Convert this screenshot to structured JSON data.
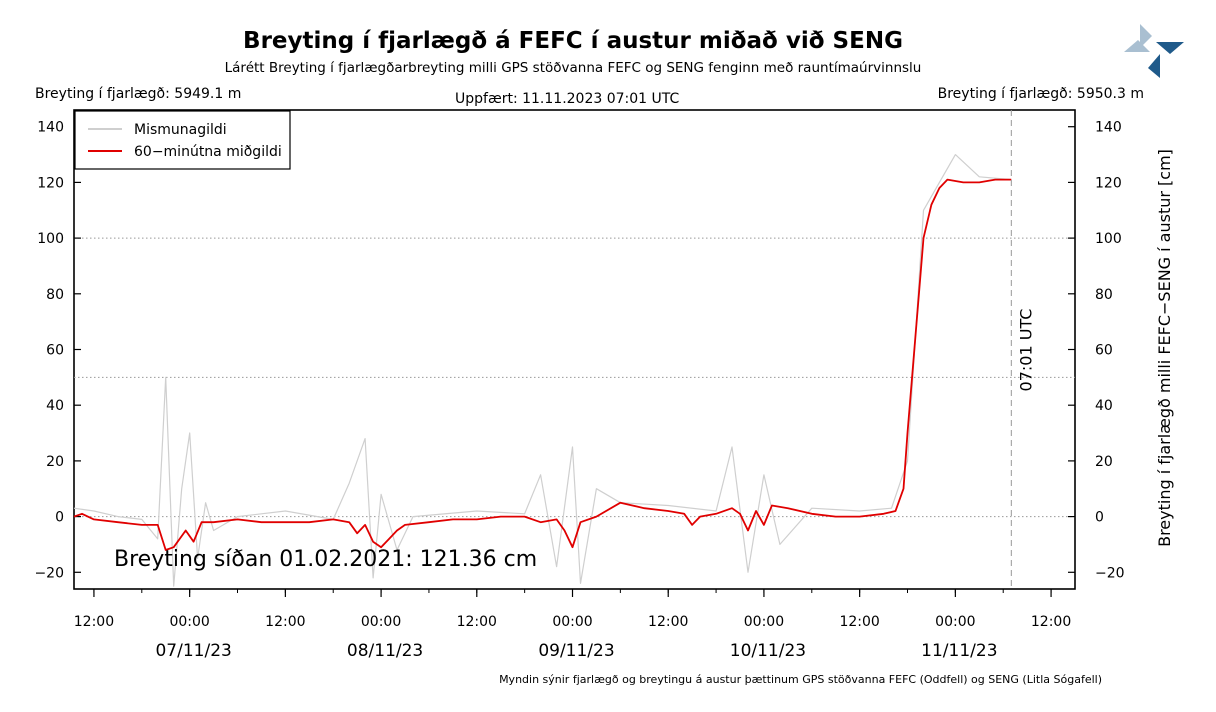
{
  "header": {
    "title": "Breyting í fjarlægð á FEFC í austur miðað við SENG",
    "subtitle": "Lárétt Breyting í fjarlægðarbreyting milli GPS stöðvanna FEFC og SENG fenginn með rauntímaúrvinnslu",
    "distance_left": "Breyting í fjarlægð: 5949.1 m",
    "updated": "Uppfært: 11.11.2023 07:01 UTC",
    "distance_right": "Breyting í fjarlægð: 5950.3 m"
  },
  "footer": {
    "note": "Myndin sýnir fjarlægð og breytingu á austur þættinum GPS stöðvanna FEFC (Oddfell) og SENG (Litla Sógafell)"
  },
  "colors": {
    "raw": "#cfcfcf",
    "median": "#e00000",
    "logo_light": "#a9bfd1",
    "logo_dark": "#1f5a8a"
  },
  "chart_data": {
    "type": "line",
    "ylabel": "Breyting í fjarlægð milli FEFC−SENG í austur [cm]",
    "ylim": [
      -26,
      146
    ],
    "yticks": [
      -20,
      0,
      20,
      40,
      60,
      80,
      100,
      120,
      140
    ],
    "ytick_labels": [
      "−20",
      "0",
      "20",
      "40",
      "60",
      "80",
      "100",
      "120",
      "140"
    ],
    "hlines": [
      0,
      50,
      100
    ],
    "xlim": [
      "2023-11-06 09:30",
      "2023-11-11 15:00"
    ],
    "xticks": [
      {
        "t": "2023-11-06 12:00",
        "label": "12:00",
        "date": ""
      },
      {
        "t": "2023-11-07 00:00",
        "label": "00:00",
        "date": "07/11/23"
      },
      {
        "t": "2023-11-07 12:00",
        "label": "12:00",
        "date": ""
      },
      {
        "t": "2023-11-08 00:00",
        "label": "00:00",
        "date": "08/11/23"
      },
      {
        "t": "2023-11-08 12:00",
        "label": "12:00",
        "date": ""
      },
      {
        "t": "2023-11-09 00:00",
        "label": "00:00",
        "date": "09/11/23"
      },
      {
        "t": "2023-11-09 12:00",
        "label": "12:00",
        "date": ""
      },
      {
        "t": "2023-11-10 00:00",
        "label": "00:00",
        "date": "10/11/23"
      },
      {
        "t": "2023-11-10 12:00",
        "label": "12:00",
        "date": ""
      },
      {
        "t": "2023-11-11 00:00",
        "label": "00:00",
        "date": "11/11/23"
      },
      {
        "t": "2023-11-11 12:00",
        "label": "12:00",
        "date": ""
      }
    ],
    "marker": {
      "t": "2023-11-11 07:01",
      "label": "07:01 UTC"
    },
    "annotation": "Breyting síðan 01.02.2021: 121.36 cm",
    "legend": {
      "position": "top-left"
    },
    "series": [
      {
        "name": "Mismunagildi",
        "color": "#cfcfcf",
        "points": [
          [
            "2023-11-06 09:30",
            3
          ],
          [
            "2023-11-06 12:00",
            2
          ],
          [
            "2023-11-06 15:00",
            0
          ],
          [
            "2023-11-06 18:00",
            -1
          ],
          [
            "2023-11-06 20:00",
            -8
          ],
          [
            "2023-11-06 21:00",
            50
          ],
          [
            "2023-11-06 22:00",
            -25
          ],
          [
            "2023-11-06 23:00",
            10
          ],
          [
            "2023-11-07 00:00",
            30
          ],
          [
            "2023-11-07 01:00",
            -15
          ],
          [
            "2023-11-07 02:00",
            5
          ],
          [
            "2023-11-07 03:00",
            -5
          ],
          [
            "2023-11-07 06:00",
            0
          ],
          [
            "2023-11-07 12:00",
            2
          ],
          [
            "2023-11-07 18:00",
            -1
          ],
          [
            "2023-11-07 20:00",
            12
          ],
          [
            "2023-11-07 22:00",
            28
          ],
          [
            "2023-11-07 23:00",
            -22
          ],
          [
            "2023-11-08 00:00",
            8
          ],
          [
            "2023-11-08 02:00",
            -12
          ],
          [
            "2023-11-08 04:00",
            0
          ],
          [
            "2023-11-08 12:00",
            2
          ],
          [
            "2023-11-08 18:00",
            1
          ],
          [
            "2023-11-08 20:00",
            15
          ],
          [
            "2023-11-08 22:00",
            -18
          ],
          [
            "2023-11-09 00:00",
            25
          ],
          [
            "2023-11-09 01:00",
            -24
          ],
          [
            "2023-11-09 03:00",
            10
          ],
          [
            "2023-11-09 06:00",
            5
          ],
          [
            "2023-11-09 12:00",
            4
          ],
          [
            "2023-11-09 18:00",
            2
          ],
          [
            "2023-11-09 20:00",
            25
          ],
          [
            "2023-11-09 22:00",
            -20
          ],
          [
            "2023-11-10 00:00",
            15
          ],
          [
            "2023-11-10 02:00",
            -10
          ],
          [
            "2023-11-10 06:00",
            3
          ],
          [
            "2023-11-10 12:00",
            2
          ],
          [
            "2023-11-10 16:00",
            3
          ],
          [
            "2023-11-10 18:00",
            20
          ],
          [
            "2023-11-10 20:00",
            110
          ],
          [
            "2023-11-10 22:00",
            120
          ],
          [
            "2023-11-11 00:00",
            130
          ],
          [
            "2023-11-11 03:00",
            122
          ],
          [
            "2023-11-11 07:01",
            121
          ]
        ]
      },
      {
        "name": "60−minútna miðgildi",
        "color": "#e00000",
        "points": [
          [
            "2023-11-06 09:30",
            0
          ],
          [
            "2023-11-06 10:30",
            1
          ],
          [
            "2023-11-06 12:00",
            -1
          ],
          [
            "2023-11-06 15:00",
            -2
          ],
          [
            "2023-11-06 18:00",
            -3
          ],
          [
            "2023-11-06 20:00",
            -3
          ],
          [
            "2023-11-06 21:00",
            -12
          ],
          [
            "2023-11-06 22:00",
            -11
          ],
          [
            "2023-11-06 23:30",
            -5
          ],
          [
            "2023-11-07 00:30",
            -9
          ],
          [
            "2023-11-07 01:30",
            -2
          ],
          [
            "2023-11-07 03:00",
            -2
          ],
          [
            "2023-11-07 06:00",
            -1
          ],
          [
            "2023-11-07 09:00",
            -2
          ],
          [
            "2023-11-07 12:00",
            -2
          ],
          [
            "2023-11-07 15:00",
            -2
          ],
          [
            "2023-11-07 18:00",
            -1
          ],
          [
            "2023-11-07 20:00",
            -2
          ],
          [
            "2023-11-07 21:00",
            -6
          ],
          [
            "2023-11-07 22:00",
            -3
          ],
          [
            "2023-11-07 23:00",
            -9
          ],
          [
            "2023-11-08 00:00",
            -11
          ],
          [
            "2023-11-08 01:00",
            -8
          ],
          [
            "2023-11-08 02:00",
            -5
          ],
          [
            "2023-11-08 03:00",
            -3
          ],
          [
            "2023-11-08 06:00",
            -2
          ],
          [
            "2023-11-08 09:00",
            -1
          ],
          [
            "2023-11-08 12:00",
            -1
          ],
          [
            "2023-11-08 15:00",
            0
          ],
          [
            "2023-11-08 18:00",
            0
          ],
          [
            "2023-11-08 20:00",
            -2
          ],
          [
            "2023-11-08 22:00",
            -1
          ],
          [
            "2023-11-08 23:00",
            -5
          ],
          [
            "2023-11-09 00:00",
            -11
          ],
          [
            "2023-11-09 01:00",
            -2
          ],
          [
            "2023-11-09 03:00",
            0
          ],
          [
            "2023-11-09 06:00",
            5
          ],
          [
            "2023-11-09 09:00",
            3
          ],
          [
            "2023-11-09 12:00",
            2
          ],
          [
            "2023-11-09 14:00",
            1
          ],
          [
            "2023-11-09 15:00",
            -3
          ],
          [
            "2023-11-09 16:00",
            0
          ],
          [
            "2023-11-09 18:00",
            1
          ],
          [
            "2023-11-09 20:00",
            3
          ],
          [
            "2023-11-09 21:00",
            1
          ],
          [
            "2023-11-09 22:00",
            -5
          ],
          [
            "2023-11-09 23:00",
            2
          ],
          [
            "2023-11-10 00:00",
            -3
          ],
          [
            "2023-11-10 01:00",
            4
          ],
          [
            "2023-11-10 03:00",
            3
          ],
          [
            "2023-11-10 06:00",
            1
          ],
          [
            "2023-11-10 09:00",
            0
          ],
          [
            "2023-11-10 12:00",
            0
          ],
          [
            "2023-11-10 15:00",
            1
          ],
          [
            "2023-11-10 16:30",
            2
          ],
          [
            "2023-11-10 17:30",
            10
          ],
          [
            "2023-11-10 18:00",
            30
          ],
          [
            "2023-11-10 19:00",
            65
          ],
          [
            "2023-11-10 20:00",
            100
          ],
          [
            "2023-11-10 21:00",
            112
          ],
          [
            "2023-11-10 22:00",
            118
          ],
          [
            "2023-11-10 23:00",
            121
          ],
          [
            "2023-11-11 01:00",
            120
          ],
          [
            "2023-11-11 03:00",
            120
          ],
          [
            "2023-11-11 05:00",
            121
          ],
          [
            "2023-11-11 07:01",
            121
          ]
        ]
      }
    ]
  }
}
